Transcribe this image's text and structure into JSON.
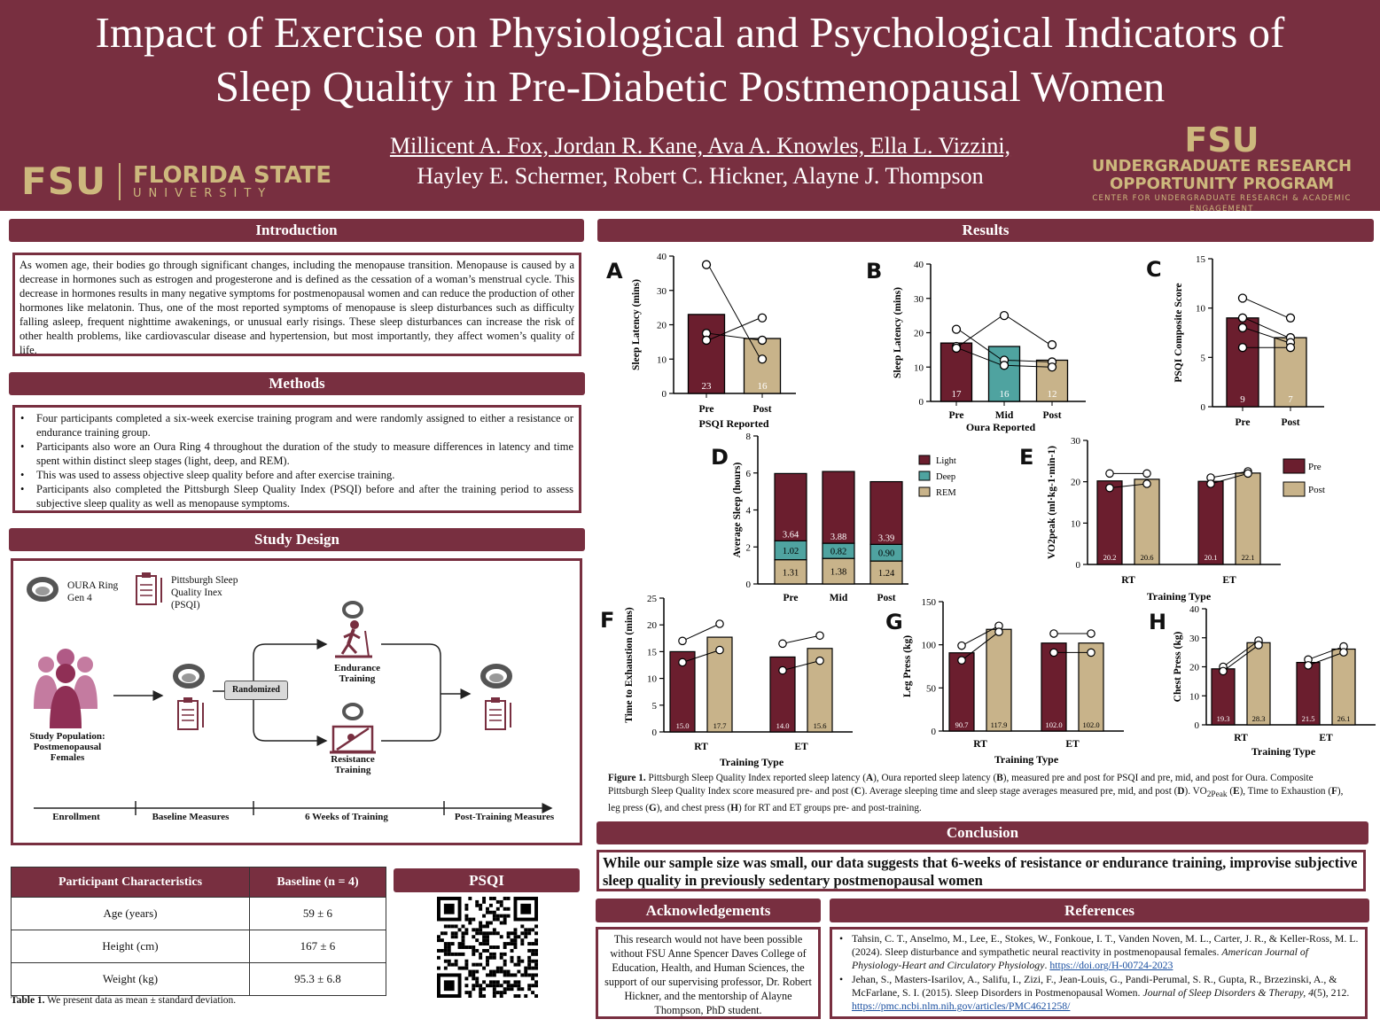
{
  "header": {
    "title_line1": "Impact of Exercise on Physiological and Psychological Indicators of",
    "title_line2": "Sleep Quality in Pre-Diabetic Postmenopausal Women",
    "authors_line1": "Millicent A. Fox, Jordan R. Kane, Ava A. Knowles, Ella L. Vizzini,",
    "authors_line2": "Hayley E. Schermer, Robert C. Hickner, Alayne J. Thompson",
    "fsu_mark": "FSU",
    "fsu_name": "FLORIDA STATE",
    "fsu_sub": "UNIVERSITY",
    "urop_mark": "FSU",
    "urop_line1": "UNDERGRADUATE RESEARCH",
    "urop_line2": "OPPORTUNITY PROGRAM",
    "urop_line3": "CENTER FOR UNDERGRADUATE RESEARCH & ACADEMIC ENGAGEMENT",
    "bg_color": "#782f40",
    "accent_color": "#cdb87d"
  },
  "introduction": {
    "heading": "Introduction",
    "text": "As women age, their bodies go through significant changes, including the menopause transition.  Menopause is caused by a decrease in hormones such as estrogen and progesterone and is defined as the cessation of a woman’s menstrual cycle. This decrease in hormones results in many negative symptoms for postmenopausal women and can reduce the production of other hormones like melatonin. Thus, one of the most reported symptoms of menopause is sleep disturbances such as difficulty falling asleep, frequent nighttime awakenings, or unusual early risings. These sleep disturbances can increase the risk of other health problems, like cardiovascular disease and hypertension, but most importantly, they affect women’s quality of life."
  },
  "methods": {
    "heading": "Methods",
    "items": [
      "Four participants completed a six-week exercise training program and were randomly assigned to either a resistance or endurance training group.",
      "Participants also wore an Oura Ring 4 throughout the duration of the study to measure differences in latency and time spent within distinct sleep stages (light, deep, and REM).",
      "This was used to assess objective sleep quality before and after exercise training.",
      "Participants also completed the Pittsburgh Sleep Quality Index (PSQI) before and after the training period to assess subjective sleep quality as well as menopause symptoms."
    ]
  },
  "study_design": {
    "heading": "Study Design",
    "oura_l1": "OURA Ring",
    "oura_l2": "Gen 4",
    "psqi_l1": "Pittsburgh Sleep",
    "psqi_l2": "Quality Inex",
    "psqi_l3": "(PSQI)",
    "population_l1": "Study Population:",
    "population_l2": "Postmenopausal",
    "population_l3": "Females",
    "randomized": "Randomized",
    "endurance_l1": "Endurance",
    "endurance_l2": "Training",
    "resistance_l1": "Resistance",
    "resistance_l2": "Training",
    "timeline": [
      "Enrollment",
      "Baseline Measures",
      "6 Weeks of Training",
      "Post-Training Measures"
    ]
  },
  "table": {
    "headers": [
      "Participant Characteristics",
      "Baseline (n = 4)"
    ],
    "rows": [
      [
        "Age (years)",
        "59 ± 6"
      ],
      [
        "Height (cm)",
        "167 ± 6"
      ],
      [
        "Weight (kg)",
        "95.3 ± 6.8"
      ]
    ],
    "caption_bold": "Table 1.",
    "caption": " We present data as mean ± standard deviation."
  },
  "psqi_qr": {
    "heading": "PSQI"
  },
  "results": {
    "heading": "Results",
    "caption_bold": "Figure 1.",
    "caption_part1": " Pittsburgh Sleep Quality Index reported sleep latency (",
    "caption_A": "A",
    "caption_part2": "), Oura reported sleep latency (",
    "caption_B": "B",
    "caption_part3": "), measured pre and post for PSQI and pre, mid, and post for Oura. Composite Pittsburgh Sleep Quality Index score measured pre- and post (",
    "caption_C": "C",
    "caption_part4": "). Average sleeping time and sleep stage averages measured pre, mid, and post (",
    "caption_D": "D",
    "caption_part5": "). VO",
    "caption_vosub": "2Peak",
    "caption_E": "E",
    "caption_part6": "), Time to Exhaustion (",
    "caption_F": "F",
    "caption_part7": "), leg press (",
    "caption_G": "G",
    "caption_part8": "), and chest press (",
    "caption_H": "H",
    "caption_part9": ") for RT and ET groups pre- and post-training."
  },
  "chart_data": [
    {
      "id": "A",
      "type": "bar",
      "title": "",
      "ylabel": "Sleep Latency (mins)",
      "xlabel": "PSQI Reported",
      "categories": [
        "Pre",
        "Post"
      ],
      "values": [
        23,
        16
      ],
      "ylim": [
        0,
        40
      ],
      "yticks": [
        0,
        10,
        20,
        30,
        40
      ],
      "colors": [
        "#6b1e2e",
        "#c8b38a"
      ],
      "points": [
        [
          37.5,
          17.5,
          15.5
        ],
        [
          22,
          15.5,
          10
        ]
      ],
      "lines": [
        [
          0,
          2
        ],
        [
          1,
          1
        ],
        [
          2,
          0
        ]
      ]
    },
    {
      "id": "B",
      "type": "bar",
      "title": "",
      "ylabel": "Sleep Latency (mins)",
      "xlabel": "Oura Reported",
      "categories": [
        "Pre",
        "Mid",
        "Post"
      ],
      "values": [
        17,
        16,
        12
      ],
      "ylim": [
        0,
        40
      ],
      "yticks": [
        0,
        10,
        20,
        30,
        40
      ],
      "colors": [
        "#6b1e2e",
        "#4fa3a0",
        "#c8b38a"
      ],
      "points": [
        [
          21,
          16,
          15.5
        ],
        [
          25,
          12,
          10.5
        ],
        [
          16.5,
          11.5,
          10
        ]
      ],
      "lines": [
        [
          0,
          1,
          1
        ],
        [
          1,
          0,
          0
        ],
        [
          2,
          2,
          2
        ]
      ]
    },
    {
      "id": "C",
      "type": "bar",
      "title": "",
      "ylabel": "PSQI Composite Score",
      "xlabel": "",
      "categories": [
        "Pre",
        "Post"
      ],
      "values": [
        9,
        7
      ],
      "ylim": [
        0,
        15
      ],
      "yticks": [
        0,
        5,
        10,
        15
      ],
      "colors": [
        "#6b1e2e",
        "#c8b38a"
      ],
      "points": [
        [
          11,
          9,
          8,
          6
        ],
        [
          9,
          7,
          6.5,
          6
        ]
      ],
      "lines": [
        [
          0,
          0
        ],
        [
          1,
          1
        ],
        [
          2,
          2
        ],
        [
          3,
          3
        ]
      ]
    },
    {
      "id": "D",
      "type": "stacked-bar",
      "ylabel": "Average Sleep (hours)",
      "xlabel": "",
      "categories": [
        "Pre",
        "Mid",
        "Post"
      ],
      "ylim": [
        0,
        8
      ],
      "yticks": [
        0,
        2,
        4,
        6,
        8
      ],
      "series": [
        {
          "name": "REM",
          "color": "#c8b38a",
          "values": [
            1.31,
            1.38,
            1.24
          ],
          "labels": [
            "1.31",
            "1.38",
            "1.24"
          ]
        },
        {
          "name": "Deep",
          "color": "#4fa3a0",
          "values": [
            1.02,
            0.82,
            0.9
          ],
          "labels": [
            "1.02",
            "0.82",
            "0.90"
          ]
        },
        {
          "name": "Light",
          "color": "#6b1e2e",
          "values": [
            3.64,
            3.88,
            3.39
          ],
          "labels": [
            "3.64",
            "3.88",
            "3.39"
          ]
        }
      ],
      "legend": [
        "Light",
        "Deep",
        "REM"
      ]
    },
    {
      "id": "E",
      "type": "grouped-bar",
      "ylabel": "VO2peak (ml·kg-1·min-1)",
      "xlabel": "Training Type",
      "groups": [
        "RT",
        "ET"
      ],
      "series_names": [
        "Pre",
        "Post"
      ],
      "colors": [
        "#6b1e2e",
        "#c8b38a"
      ],
      "values": [
        [
          20.2,
          20.6
        ],
        [
          20.1,
          22.1
        ]
      ],
      "labels": [
        [
          "20.2",
          "20.6"
        ],
        [
          "20.1",
          "22.1"
        ]
      ],
      "ylim": [
        0,
        30
      ],
      "yticks": [
        0,
        10,
        20,
        30
      ],
      "points": [
        [
          [
            22,
            18.5
          ],
          [
            22,
            19.5
          ]
        ],
        [
          [
            21,
            19.5
          ],
          [
            22.5,
            22
          ]
        ]
      ],
      "legend": [
        "Pre",
        "Post"
      ]
    },
    {
      "id": "F",
      "type": "grouped-bar",
      "ylabel": "Time to Exhaustion (mins)",
      "xlabel": "Training Type",
      "groups": [
        "RT",
        "ET"
      ],
      "series_names": [
        "Pre",
        "Post"
      ],
      "colors": [
        "#6b1e2e",
        "#c8b38a"
      ],
      "values": [
        [
          15.0,
          17.7
        ],
        [
          14.0,
          15.6
        ]
      ],
      "labels": [
        [
          "15.0",
          "17.7"
        ],
        [
          "14.0",
          "15.6"
        ]
      ],
      "ylim": [
        0,
        25
      ],
      "yticks": [
        0,
        5,
        10,
        15,
        20,
        25
      ],
      "points": [
        [
          [
            17,
            13
          ],
          [
            20.2,
            15.3
          ]
        ],
        [
          [
            16.5,
            11.5
          ],
          [
            18,
            13.3
          ]
        ]
      ]
    },
    {
      "id": "G",
      "type": "grouped-bar",
      "ylabel": "Leg Press (kg)",
      "xlabel": "Training Type",
      "groups": [
        "RT",
        "ET"
      ],
      "series_names": [
        "Pre",
        "Post"
      ],
      "colors": [
        "#6b1e2e",
        "#c8b38a"
      ],
      "values": [
        [
          90.7,
          117.9
        ],
        [
          102.0,
          102.0
        ]
      ],
      "labels": [
        [
          "90.7",
          "117.9"
        ],
        [
          "102.0",
          "102.0"
        ]
      ],
      "ylim": [
        0,
        150
      ],
      "yticks": [
        0,
        50,
        100,
        150
      ],
      "points": [
        [
          [
            99,
            82
          ],
          [
            122,
            115
          ]
        ],
        [
          [
            113,
            91
          ],
          [
            113,
            91
          ]
        ]
      ]
    },
    {
      "id": "H",
      "type": "grouped-bar",
      "ylabel": "Chest Press (kg)",
      "xlabel": "Training Type",
      "groups": [
        "RT",
        "ET"
      ],
      "series_names": [
        "Pre",
        "Post"
      ],
      "colors": [
        "#6b1e2e",
        "#c8b38a"
      ],
      "values": [
        [
          19.3,
          28.3
        ],
        [
          21.5,
          26.1
        ]
      ],
      "labels": [
        [
          "19.3",
          "28.3"
        ],
        [
          "21.5",
          "26.1"
        ]
      ],
      "ylim": [
        0,
        40
      ],
      "yticks": [
        0,
        10,
        20,
        30,
        40
      ],
      "points": [
        [
          [
            20,
            18.5
          ],
          [
            29,
            27.5
          ]
        ],
        [
          [
            22.5,
            20.5
          ],
          [
            27,
            25
          ]
        ]
      ]
    }
  ],
  "conclusion": {
    "heading": "Conclusion",
    "text": "While our sample size was small, our data suggests that 6-weeks of resistance or endurance training, improvise subjective sleep quality in previously sedentary postmenopausal women"
  },
  "acknowledgements": {
    "heading": "Acknowledgements",
    "text": "This research would not have been possible without FSU Anne Spencer Daves College of Education, Health, and Human Sciences, the support of our supervising professor, Dr. Robert Hickner, and the mentorship of Alayne Thompson, PhD student."
  },
  "references": {
    "heading": "References",
    "ref1_text": "Tahsin, C. T., Anselmo, M., Lee, E., Stokes, W., Fonkoue, I. T., Vanden Noven, M. L., Carter, J. R., & Keller-Ross, M. L. (2024). Sleep disturbance and sympathetic neural reactivity in postmenopausal females. ",
    "ref1_journal": "American Journal of Physiology-Heart and Circulatory Physiology",
    "ref1_sep": ". ",
    "ref1_doi": "https://doi.org/H-00724-2023",
    "ref2_text": "Jehan, S., Masters-Isarilov, A., Salifu, I., Zizi, F., Jean-Louis, G., Pandi-Perumal, S. R., Gupta, R., Brzezinski, A., & McFarlane, S. I. (2015). Sleep Disorders in Postmenopausal Women. ",
    "ref2_journal": "Journal of Sleep Disorders & Therapy, 4",
    "ref2_issue": "(5), 212. ",
    "ref2_doi": "https://pmc.ncbi.nlm.nih.gov/articles/PMC4621258/"
  }
}
